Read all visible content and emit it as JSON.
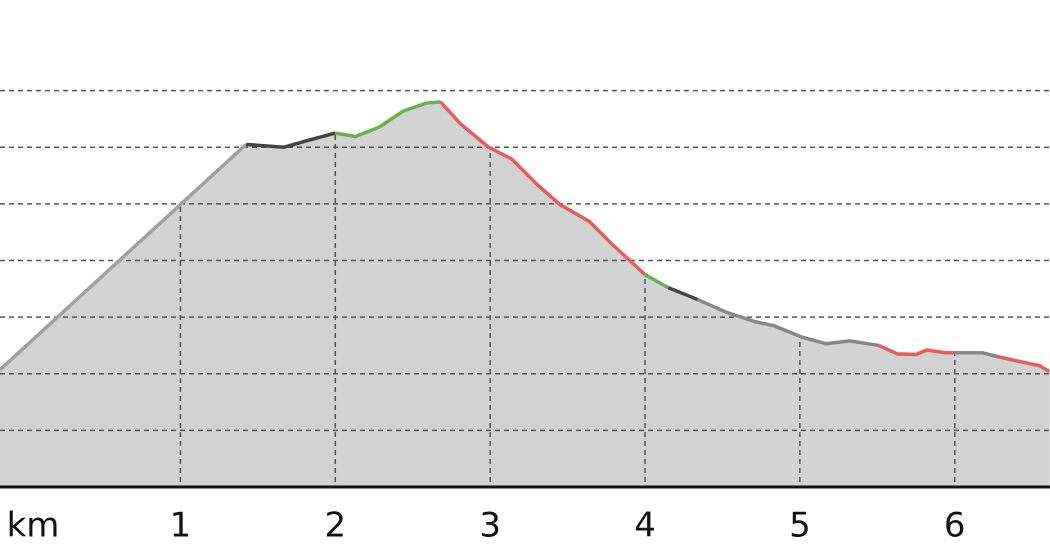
{
  "chart_data": {
    "type": "area",
    "x_label": "km",
    "xlim": [
      -0.165,
      6.615
    ],
    "xticks": [
      1,
      2,
      3,
      4,
      5,
      6
    ],
    "ylim": [
      0,
      8.6
    ],
    "yticks": [
      1,
      2,
      3,
      4,
      5,
      6,
      7
    ],
    "grid": true,
    "fill_color": "#d3d3d3",
    "segments": [
      {
        "color": "#a0a0a0",
        "x": [
          -0.165,
          1.424
        ],
        "y": [
          2.07,
          6.05
        ]
      },
      {
        "color": "#444444",
        "x": [
          1.424,
          1.669,
          1.823,
          2.0
        ],
        "y": [
          6.05,
          6.0,
          6.12,
          6.25
        ]
      },
      {
        "color": "#6ab04c",
        "x": [
          2.0,
          2.13,
          2.28,
          2.44,
          2.59,
          2.68
        ],
        "y": [
          6.25,
          6.19,
          6.35,
          6.64,
          6.78,
          6.8
        ]
      },
      {
        "color": "#e85c5c",
        "x": [
          2.68,
          2.81,
          2.99,
          3.14,
          3.3,
          3.45,
          3.64,
          3.79,
          3.91,
          4.0
        ],
        "y": [
          6.8,
          6.41,
          6.0,
          5.79,
          5.35,
          4.99,
          4.69,
          4.28,
          3.98,
          3.75
        ]
      },
      {
        "color": "#6ab04c",
        "x": [
          4.0,
          4.15
        ],
        "y": [
          3.75,
          3.52
        ]
      },
      {
        "color": "#444444",
        "x": [
          4.15,
          4.34
        ],
        "y": [
          3.52,
          3.31
        ]
      },
      {
        "color": "#888888",
        "x": [
          4.34,
          4.53,
          4.71,
          4.83,
          5.02,
          5.17,
          5.32,
          5.51
        ],
        "y": [
          3.31,
          3.08,
          2.92,
          2.85,
          2.64,
          2.53,
          2.58,
          2.5
        ]
      },
      {
        "color": "#e85c5c",
        "x": [
          5.51,
          5.63,
          5.75,
          5.82,
          5.94,
          6.0
        ],
        "y": [
          2.5,
          2.35,
          2.34,
          2.42,
          2.37,
          2.37
        ]
      },
      {
        "color": "#888888",
        "x": [
          6.0,
          6.18,
          6.28
        ],
        "y": [
          2.37,
          2.37,
          2.3
        ]
      },
      {
        "color": "#e85c5c",
        "x": [
          6.28,
          6.43,
          6.55,
          6.61
        ],
        "y": [
          2.3,
          2.21,
          2.14,
          2.04
        ]
      }
    ]
  }
}
